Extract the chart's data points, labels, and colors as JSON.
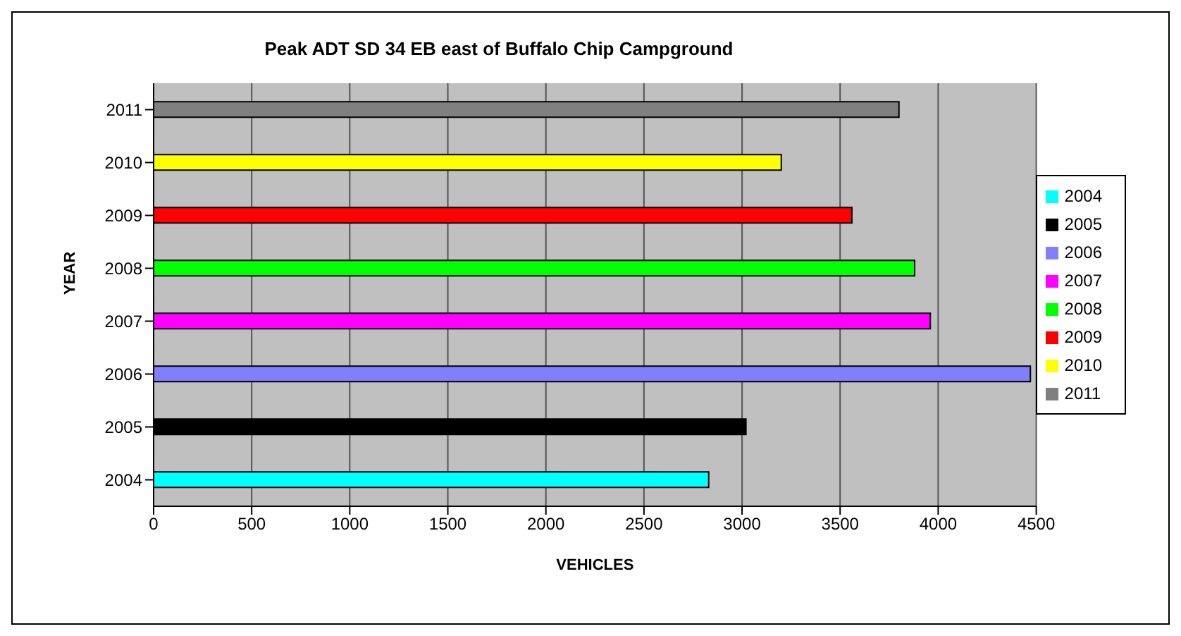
{
  "chart_data": {
    "type": "bar",
    "orientation": "horizontal",
    "stacked": true,
    "title": "Peak ADT SD 34 EB east of Buffalo Chip Campground",
    "xlabel": "VEHICLES",
    "ylabel": "YEAR",
    "categories": [
      "2011",
      "2010",
      "2009",
      "2008",
      "2007",
      "2006",
      "2005",
      "2004"
    ],
    "series": [
      {
        "name": "2011",
        "color": "#808080",
        "values": [
          3800,
          null,
          null,
          null,
          null,
          null,
          null,
          null
        ]
      },
      {
        "name": "2010",
        "color": "#ffff00",
        "values": [
          null,
          3200,
          null,
          null,
          null,
          null,
          null,
          null
        ]
      },
      {
        "name": "2009",
        "color": "#ff0000",
        "values": [
          null,
          null,
          3560,
          null,
          null,
          null,
          null,
          null
        ]
      },
      {
        "name": "2008",
        "color": "#00ff00",
        "values": [
          null,
          null,
          null,
          3880,
          null,
          null,
          null,
          null
        ]
      },
      {
        "name": "2007",
        "color": "#ff00ff",
        "values": [
          null,
          null,
          null,
          null,
          3960,
          null,
          null,
          null
        ]
      },
      {
        "name": "2006",
        "color": "#8080ff",
        "values": [
          null,
          null,
          null,
          null,
          null,
          4470,
          null,
          null
        ]
      },
      {
        "name": "2005",
        "color": "#000000",
        "values": [
          null,
          null,
          null,
          null,
          null,
          null,
          3020,
          null
        ]
      },
      {
        "name": "2004",
        "color": "#00ffff",
        "values": [
          null,
          null,
          null,
          null,
          null,
          null,
          null,
          2830
        ]
      }
    ],
    "xlim": [
      0,
      4500
    ],
    "xticks": [
      0,
      500,
      1000,
      1500,
      2000,
      2500,
      3000,
      3500,
      4000,
      4500
    ],
    "grid": "x",
    "legend": "right"
  }
}
